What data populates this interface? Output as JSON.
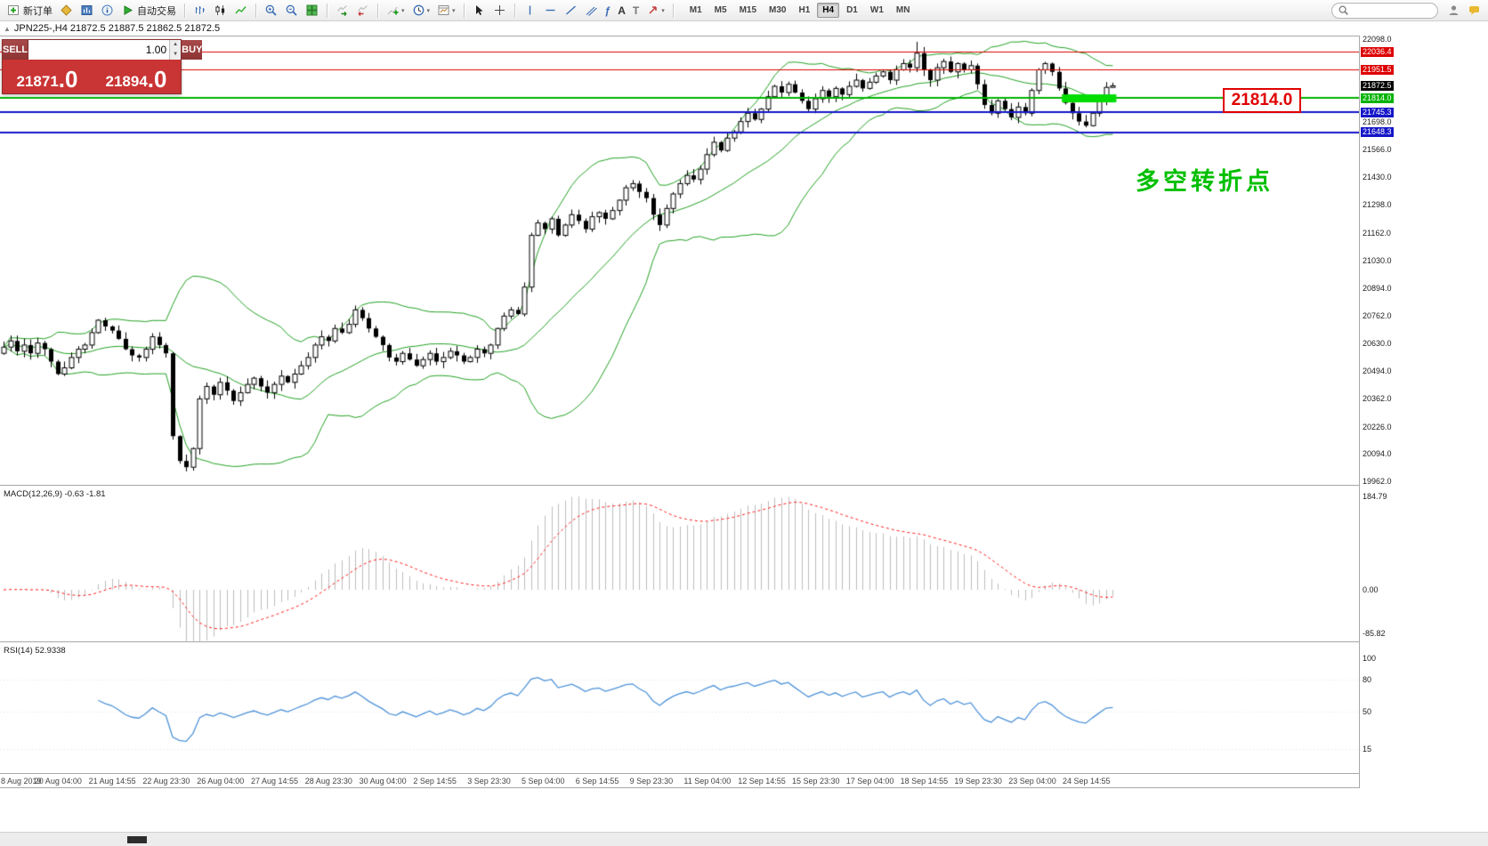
{
  "toolbar": {
    "new_order": "新订单",
    "autotrade": "自动交易",
    "timeframes": [
      "M1",
      "M5",
      "M15",
      "M30",
      "H1",
      "H4",
      "D1",
      "W1",
      "MN"
    ],
    "active_timeframe": "H4",
    "search_placeholder": ""
  },
  "symbol_row": {
    "text": "JPN225-,H4 21872.5 21887.5 21862.5 21872.5"
  },
  "trade_panel": {
    "sell_label": "SELL",
    "buy_label": "BUY",
    "volume": "1.00",
    "sell_price": "21871",
    "sell_pip": ".0",
    "buy_price": "21894",
    "buy_pip": ".0"
  },
  "annotations": {
    "callout_text": "21814.0",
    "note_text": "多空转折点"
  },
  "colors": {
    "bull_candle": "#ffffff",
    "bear_candle": "#000000",
    "bollinger": "#22a022",
    "highlight_green": "#00dd00",
    "macd_histogram": "#bcbcbc",
    "macd_signal": "#ff1a1a",
    "rsi_line": "#4f93d8",
    "callout_red": "#e00000",
    "note_green": "#00bf00"
  },
  "price_scale": [
    {
      "text": "22098.0",
      "value": 22098.0,
      "type": "plain"
    },
    {
      "text": "22036.4",
      "value": 22036.4,
      "type": "badge",
      "color": "#dd0000"
    },
    {
      "text": "21951.5",
      "value": 21951.5,
      "type": "badge",
      "color": "#dd0000"
    },
    {
      "text": "21872.5",
      "value": 21872.5,
      "type": "badge",
      "color": "#000000"
    },
    {
      "text": "21814.0",
      "value": 21814.0,
      "type": "badge",
      "color": "#00b300"
    },
    {
      "text": "21745.3",
      "value": 21745.3,
      "type": "badge",
      "color": "#1616c8"
    },
    {
      "text": "21698.0",
      "value": 21698.0,
      "type": "plain"
    },
    {
      "text": "21648.3",
      "value": 21648.3,
      "type": "badge",
      "color": "#1616c8"
    },
    {
      "text": "21566.0",
      "value": 21566.0,
      "type": "plain"
    },
    {
      "text": "21430.0",
      "value": 21430.0,
      "type": "plain"
    },
    {
      "text": "21298.0",
      "value": 21298.0,
      "type": "plain"
    },
    {
      "text": "21162.0",
      "value": 21162.0,
      "type": "plain"
    },
    {
      "text": "21030.0",
      "value": 21030.0,
      "type": "plain"
    },
    {
      "text": "20894.0",
      "value": 20894.0,
      "type": "plain"
    },
    {
      "text": "20762.0",
      "value": 20762.0,
      "type": "plain"
    },
    {
      "text": "20630.0",
      "value": 20630.0,
      "type": "plain"
    },
    {
      "text": "20494.0",
      "value": 20494.0,
      "type": "plain"
    },
    {
      "text": "20362.0",
      "value": 20362.0,
      "type": "plain"
    },
    {
      "text": "20226.0",
      "value": 20226.0,
      "type": "plain"
    },
    {
      "text": "20094.0",
      "value": 20094.0,
      "type": "plain"
    },
    {
      "text": "19962.0",
      "value": 19962.0,
      "type": "plain"
    }
  ],
  "chart_data": {
    "type": "candlestick",
    "symbol": "JPN225-",
    "timeframe": "H4",
    "price_axis": {
      "min": 19962.0,
      "max": 22098.0
    },
    "bollinger": {
      "period": 20,
      "deviation": 2
    },
    "closes": [
      20610,
      20640,
      20590,
      20620,
      20580,
      20630,
      20600,
      20540,
      20480,
      20510,
      20560,
      20600,
      20620,
      20680,
      20740,
      20710,
      20690,
      20650,
      20600,
      20570,
      20560,
      20600,
      20660,
      20620,
      20580,
      20180,
      20060,
      20030,
      20120,
      20360,
      20420,
      20380,
      20440,
      20400,
      20350,
      20390,
      20430,
      20460,
      20420,
      20390,
      20430,
      20470,
      20440,
      20480,
      20520,
      20560,
      20620,
      20660,
      20640,
      20700,
      20680,
      20720,
      20790,
      20750,
      20700,
      20660,
      20620,
      20560,
      20540,
      20580,
      20550,
      20520,
      20550,
      20580,
      20540,
      20560,
      20590,
      20570,
      20540,
      20560,
      20600,
      20580,
      20620,
      20700,
      20760,
      20790,
      20770,
      20900,
      21150,
      21210,
      21180,
      21230,
      21150,
      21200,
      21250,
      21220,
      21180,
      21240,
      21260,
      21230,
      21270,
      21320,
      21380,
      21400,
      21360,
      21330,
      21250,
      21200,
      21280,
      21350,
      21400,
      21440,
      21420,
      21470,
      21540,
      21600,
      21560,
      21620,
      21650,
      21700,
      21740,
      21710,
      21760,
      21820,
      21870,
      21840,
      21880,
      21840,
      21800,
      21760,
      21810,
      21850,
      21820,
      21860,
      21830,
      21870,
      21900,
      21860,
      21890,
      21920,
      21940,
      21900,
      21950,
      21980,
      21960,
      22030,
      21950,
      21900,
      21960,
      21990,
      21940,
      21980,
      21950,
      21970,
      21880,
      21780,
      21740,
      21800,
      21760,
      21720,
      21770,
      21740,
      21850,
      21950,
      21980,
      21940,
      21860,
      21790,
      21740,
      21700,
      21680,
      21740,
      21800,
      21865,
      21872.5
    ],
    "last_candle": {
      "open": 21865.0,
      "high": 21887.5,
      "low": 21862.5,
      "close": 21872.5
    },
    "special_wicks": [
      {
        "index": 135,
        "high": 22085
      },
      {
        "index": 27,
        "low": 20010
      }
    ],
    "horizontal_lines": [
      {
        "price": 22036.4,
        "color": "#dd0000",
        "width": 1
      },
      {
        "price": 21951.5,
        "color": "#dd0000",
        "width": 1
      },
      {
        "price": 21814.0,
        "color": "#00b300",
        "width": 2
      },
      {
        "price": 21745.3,
        "color": "#1616c8",
        "width": 2
      },
      {
        "price": 21648.3,
        "color": "#1616c8",
        "width": 2
      }
    ],
    "highlight": {
      "price": 21814.0,
      "from_candle": 157,
      "to_candle": 164,
      "color": "#00dd00"
    },
    "macd": {
      "label": "MACD(12,26,9) -0.63 -1.81",
      "scale": [
        {
          "text": "184.79",
          "value": 184.79
        },
        {
          "text": "0.00",
          "value": 0
        },
        {
          "text": "-85.82",
          "value": -85.82
        }
      ]
    },
    "rsi": {
      "label": "RSI(14) 52.9338",
      "scale": [
        {
          "text": "100",
          "value": 100
        },
        {
          "text": "80",
          "value": 80
        },
        {
          "text": "50",
          "value": 50
        },
        {
          "text": "15",
          "value": 15
        }
      ]
    },
    "time_labels": [
      "8 Aug 2019",
      "20 Aug 04:00",
      "21 Aug 14:55",
      "22 Aug 23:30",
      "26 Aug 04:00",
      "27 Aug 14:55",
      "28 Aug 23:30",
      "30 Aug 04:00",
      "2 Sep 14:55",
      "3 Sep 23:30",
      "5 Sep 04:00",
      "6 Sep 14:55",
      "9 Sep 23:30",
      "11 Sep 04:00",
      "12 Sep 14:55",
      "15 Sep 23:30",
      "17 Sep 04:00",
      "18 Sep 14:55",
      "19 Sep 23:30",
      "23 Sep 04:00",
      "24 Sep 14:55"
    ]
  }
}
